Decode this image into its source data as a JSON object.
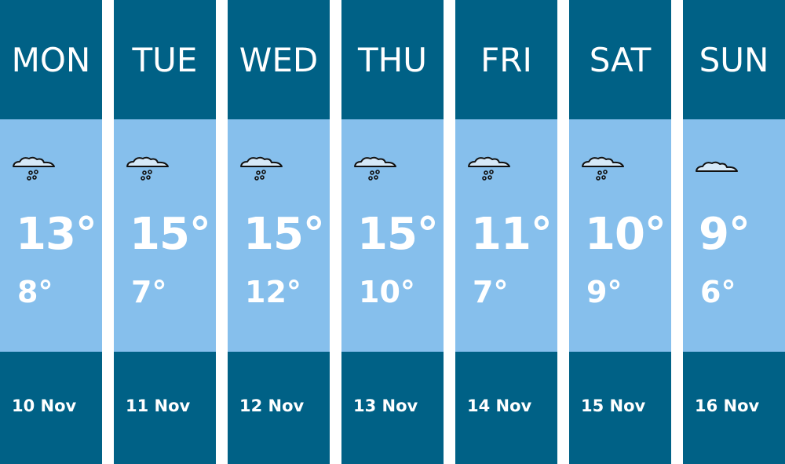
{
  "colors": {
    "header": "#006186",
    "body": "#86bfec",
    "text": "#ffffff"
  },
  "days": [
    {
      "name": "MON",
      "icon": "rain-cloud-icon",
      "high": "13°",
      "low": "8°",
      "date": "10 Nov"
    },
    {
      "name": "TUE",
      "icon": "rain-cloud-icon",
      "high": "15°",
      "low": "7°",
      "date": "11 Nov"
    },
    {
      "name": "WED",
      "icon": "rain-cloud-icon",
      "high": "15°",
      "low": "12°",
      "date": "12 Nov"
    },
    {
      "name": "THU",
      "icon": "rain-cloud-icon",
      "high": "15°",
      "low": "10°",
      "date": "13 Nov"
    },
    {
      "name": "FRI",
      "icon": "rain-cloud-icon",
      "high": "11°",
      "low": "7°",
      "date": "14 Nov"
    },
    {
      "name": "SAT",
      "icon": "rain-cloud-icon",
      "high": "10°",
      "low": "9°",
      "date": "15 Nov"
    },
    {
      "name": "SUN",
      "icon": "cloud-icon",
      "high": "9°",
      "low": "6°",
      "date": "16 Nov"
    }
  ]
}
